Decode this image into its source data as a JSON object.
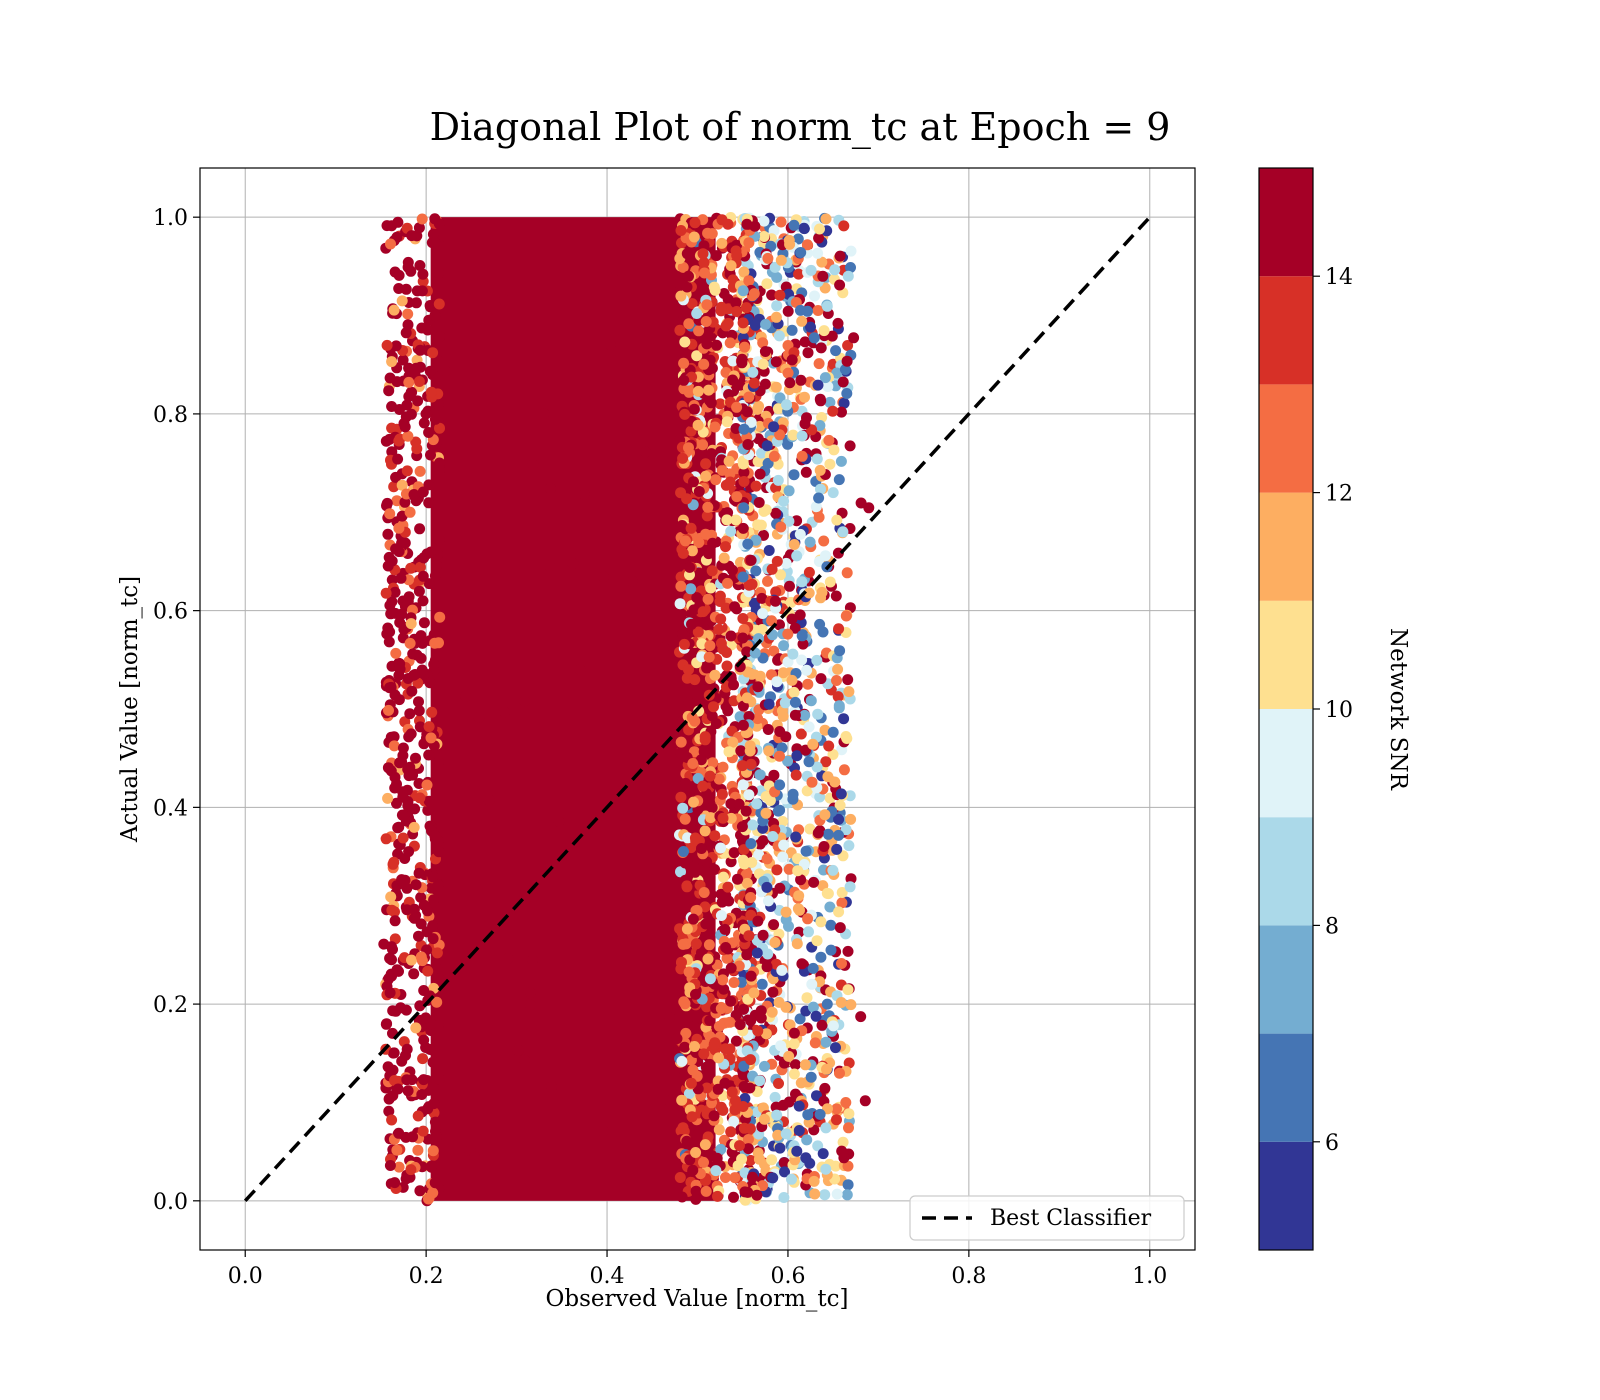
{
  "chart_data": {
    "type": "scatter",
    "title": "Diagonal Plot of norm_tc at Epoch = 9",
    "xlabel": "Observed Value [norm_tc]",
    "ylabel": "Actual Value [norm_tc]",
    "xlim": [
      -0.05,
      1.05
    ],
    "ylim": [
      -0.05,
      1.05
    ],
    "x_ticks": [
      "0.0",
      "0.2",
      "0.4",
      "0.6",
      "0.8",
      "1.0"
    ],
    "y_ticks": [
      "0.0",
      "0.2",
      "0.4",
      "0.6",
      "0.8",
      "1.0"
    ],
    "grid": true,
    "reference_line": {
      "name": "Best Classifier",
      "style": "dashed",
      "color": "#000000",
      "x": [
        0.0,
        1.0
      ],
      "y": [
        0.0,
        1.0
      ]
    },
    "legend_position": "lower-right",
    "scatter_summary": {
      "dense_x_range": [
        0.2,
        0.55
      ],
      "sparse_x_range": [
        0.14,
        0.71
      ],
      "y_range": [
        0.0,
        1.0
      ],
      "dominant_color_value": 15
    },
    "colorbar": {
      "label": "Network SNR",
      "range": [
        5,
        15
      ],
      "ticks": [
        "6",
        "8",
        "10",
        "12",
        "14"
      ],
      "bands": [
        {
          "from": 5,
          "to": 6,
          "color": "#313695"
        },
        {
          "from": 6,
          "to": 7,
          "color": "#4575b4"
        },
        {
          "from": 7,
          "to": 8,
          "color": "#74add1"
        },
        {
          "from": 8,
          "to": 9,
          "color": "#abd9e9"
        },
        {
          "from": 9,
          "to": 10,
          "color": "#e0f3f8"
        },
        {
          "from": 10,
          "to": 11,
          "color": "#fee090"
        },
        {
          "from": 11,
          "to": 12,
          "color": "#fdae61"
        },
        {
          "from": 12,
          "to": 13,
          "color": "#f46d43"
        },
        {
          "from": 13,
          "to": 14,
          "color": "#d73027"
        },
        {
          "from": 14,
          "to": 15,
          "color": "#a50026"
        }
      ]
    }
  }
}
